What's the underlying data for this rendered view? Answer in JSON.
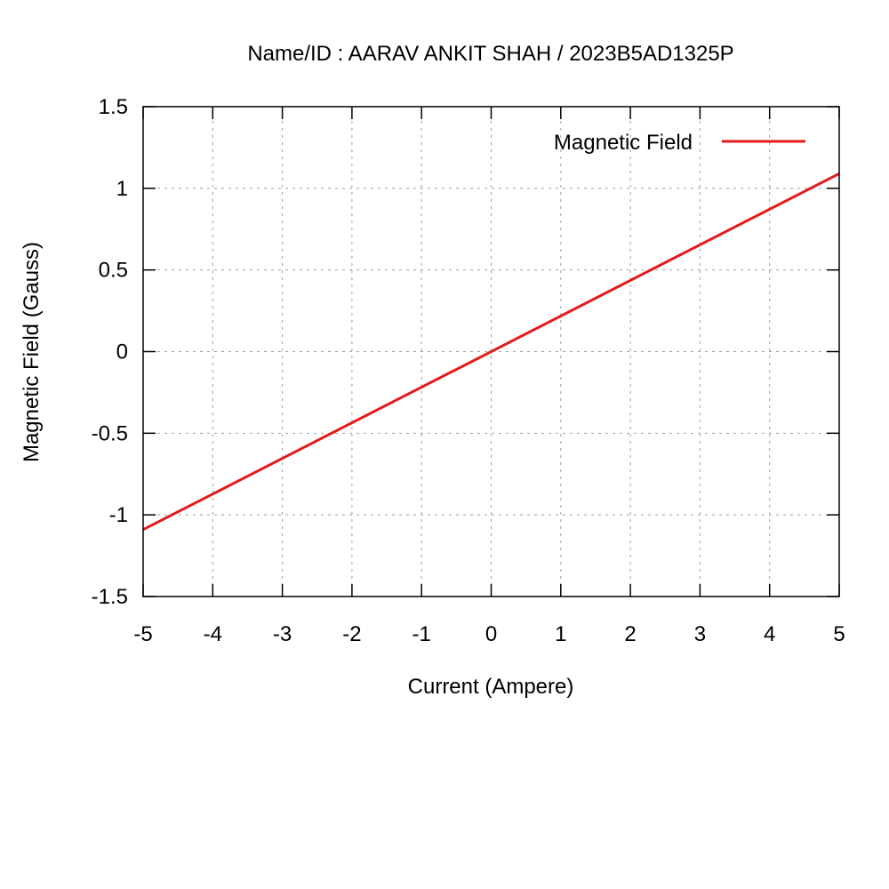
{
  "chart_data": {
    "type": "line",
    "title": "Name/ID : AARAV ANKIT SHAH / 2023B5AD1325P",
    "xlabel": "Current (Ampere)",
    "ylabel": "Magnetic Field (Gauss)",
    "xlim": [
      -5,
      5
    ],
    "ylim": [
      -1.5,
      1.5
    ],
    "xticks": [
      "-5",
      "-4",
      "-3",
      "-2",
      "-1",
      "0",
      "1",
      "2",
      "3",
      "4",
      "5"
    ],
    "yticks": [
      "-1.5",
      "-1",
      "-0.5",
      "0",
      "0.5",
      "1",
      "1.5"
    ],
    "grid": true,
    "legend_position": "top-right",
    "series": [
      {
        "name": "Magnetic Field",
        "color": "#e41a1c",
        "x": [
          -5,
          5
        ],
        "y": [
          -1.09,
          1.09
        ]
      }
    ]
  }
}
